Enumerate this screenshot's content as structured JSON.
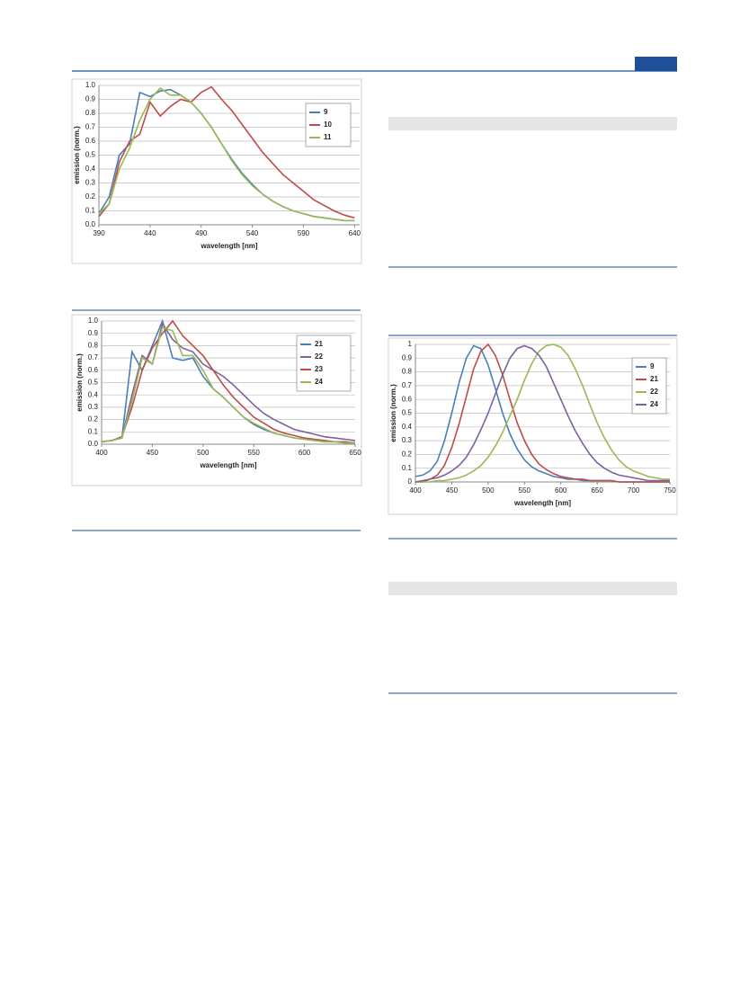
{
  "chart_data": [
    {
      "type": "line",
      "ylabel": "emission (norm.)",
      "xlabel": "wavelength [nm]",
      "x": [
        390,
        400,
        410,
        420,
        430,
        440,
        450,
        460,
        470,
        480,
        490,
        500,
        510,
        520,
        530,
        540,
        550,
        560,
        570,
        580,
        590,
        600,
        610,
        620,
        630,
        640
      ],
      "series": [
        {
          "name": "9",
          "color": "#4a7ebb",
          "values": [
            0.08,
            0.2,
            0.5,
            0.58,
            0.95,
            0.92,
            0.96,
            0.97,
            0.93,
            0.88,
            0.8,
            0.7,
            0.58,
            0.47,
            0.37,
            0.29,
            0.22,
            0.17,
            0.13,
            0.1,
            0.08,
            0.06,
            0.05,
            0.04,
            0.03,
            0.03
          ]
        },
        {
          "name": "10",
          "color": "#be4b48",
          "values": [
            0.06,
            0.15,
            0.45,
            0.6,
            0.65,
            0.88,
            0.78,
            0.85,
            0.9,
            0.88,
            0.95,
            0.99,
            0.9,
            0.82,
            0.72,
            0.62,
            0.52,
            0.44,
            0.36,
            0.3,
            0.24,
            0.18,
            0.14,
            0.1,
            0.07,
            0.05
          ]
        },
        {
          "name": "11",
          "color": "#98b954",
          "values": [
            0.08,
            0.15,
            0.4,
            0.55,
            0.75,
            0.9,
            0.98,
            0.93,
            0.93,
            0.88,
            0.8,
            0.7,
            0.58,
            0.46,
            0.36,
            0.28,
            0.22,
            0.17,
            0.13,
            0.1,
            0.08,
            0.06,
            0.05,
            0.04,
            0.03,
            0.03
          ]
        }
      ],
      "xlim": [
        390,
        645
      ],
      "xticks": [
        390,
        440,
        490,
        540,
        590,
        640
      ],
      "ylim": [
        0,
        1
      ],
      "yticks": [
        {
          "value": 0,
          "label": "0.0"
        },
        0.1,
        0.2,
        0.3,
        0.4,
        0.5,
        0.6,
        0.7,
        0.8,
        0.9,
        {
          "value": 1,
          "label": "1.0"
        }
      ],
      "grid": true
    },
    {
      "type": "line",
      "ylabel": "emission (norm.)",
      "xlabel": "wavelength [nm]",
      "x": [
        400,
        410,
        420,
        430,
        440,
        450,
        460,
        470,
        480,
        490,
        500,
        510,
        520,
        530,
        540,
        550,
        560,
        570,
        580,
        590,
        600,
        610,
        620,
        630,
        640,
        650
      ],
      "series": [
        {
          "name": "21",
          "color": "#4a7ebb",
          "values": [
            0.02,
            0.03,
            0.05,
            0.75,
            0.6,
            0.8,
            1.0,
            0.7,
            0.68,
            0.7,
            0.55,
            0.45,
            0.38,
            0.3,
            0.22,
            0.16,
            0.12,
            0.09,
            0.07,
            0.05,
            0.04,
            0.03,
            0.02,
            0.02,
            0.01,
            0.01
          ]
        },
        {
          "name": "22",
          "color": "#7d60a0",
          "values": [
            0.02,
            0.03,
            0.05,
            0.4,
            0.72,
            0.65,
            0.98,
            0.85,
            0.78,
            0.75,
            0.65,
            0.6,
            0.55,
            0.48,
            0.4,
            0.32,
            0.25,
            0.2,
            0.16,
            0.12,
            0.1,
            0.08,
            0.06,
            0.05,
            0.04,
            0.03
          ]
        },
        {
          "name": "23",
          "color": "#be4b48",
          "values": [
            0.02,
            0.03,
            0.06,
            0.3,
            0.6,
            0.78,
            0.9,
            1.0,
            0.88,
            0.8,
            0.72,
            0.6,
            0.48,
            0.38,
            0.3,
            0.22,
            0.17,
            0.12,
            0.09,
            0.07,
            0.05,
            0.04,
            0.03,
            0.02,
            0.02,
            0.01
          ]
        },
        {
          "name": "24",
          "color": "#98b954",
          "values": [
            0.02,
            0.03,
            0.05,
            0.35,
            0.7,
            0.65,
            0.95,
            0.92,
            0.72,
            0.72,
            0.6,
            0.45,
            0.38,
            0.3,
            0.22,
            0.17,
            0.13,
            0.09,
            0.07,
            0.05,
            0.04,
            0.03,
            0.02,
            0.02,
            0.01,
            0.01
          ]
        }
      ],
      "xlim": [
        400,
        650
      ],
      "xticks": [
        400,
        450,
        500,
        550,
        600,
        650
      ],
      "ylim": [
        0,
        1
      ],
      "yticks": [
        {
          "value": 0,
          "label": "0.0"
        },
        0.1,
        0.2,
        0.3,
        0.4,
        0.5,
        0.6,
        0.7,
        0.8,
        0.9,
        {
          "value": 1,
          "label": "1.0"
        }
      ],
      "grid": true
    },
    {
      "type": "line",
      "ylabel": "emission (norm.)",
      "xlabel": "wavelength [nm]",
      "x": [
        400,
        410,
        420,
        430,
        440,
        450,
        460,
        470,
        480,
        490,
        500,
        510,
        520,
        530,
        540,
        550,
        560,
        570,
        580,
        590,
        600,
        610,
        620,
        630,
        640,
        650,
        660,
        670,
        680,
        690,
        700,
        710,
        720,
        730,
        740,
        750
      ],
      "series": [
        {
          "name": "9",
          "color": "#4a7ebb",
          "values": [
            0.04,
            0.05,
            0.08,
            0.15,
            0.3,
            0.5,
            0.72,
            0.9,
            0.99,
            0.97,
            0.85,
            0.68,
            0.5,
            0.35,
            0.24,
            0.16,
            0.11,
            0.08,
            0.06,
            0.04,
            0.03,
            0.02,
            0.02,
            0.01,
            0.01,
            0.01,
            0.01,
            0.01,
            0,
            0,
            0,
            0,
            0,
            0,
            0,
            0
          ]
        },
        {
          "name": "21",
          "color": "#be4b48",
          "values": [
            0,
            0,
            0.02,
            0.05,
            0.12,
            0.25,
            0.42,
            0.62,
            0.82,
            0.95,
            1.0,
            0.92,
            0.78,
            0.6,
            0.43,
            0.3,
            0.2,
            0.13,
            0.09,
            0.06,
            0.04,
            0.03,
            0.02,
            0.02,
            0.01,
            0.01,
            0.01,
            0.01,
            0,
            0,
            0,
            0,
            0,
            0,
            0,
            0
          ]
        },
        {
          "name": "22",
          "color": "#98b954",
          "values": [
            0,
            0,
            0,
            0.01,
            0.01,
            0.02,
            0.03,
            0.05,
            0.08,
            0.12,
            0.18,
            0.26,
            0.36,
            0.48,
            0.6,
            0.74,
            0.86,
            0.95,
            0.99,
            1.0,
            0.98,
            0.92,
            0.82,
            0.7,
            0.56,
            0.43,
            0.32,
            0.23,
            0.16,
            0.11,
            0.08,
            0.06,
            0.04,
            0.03,
            0.02,
            0.02
          ]
        },
        {
          "name": "24",
          "color": "#7d60a0",
          "values": [
            0,
            0.01,
            0.02,
            0.03,
            0.05,
            0.08,
            0.12,
            0.18,
            0.27,
            0.38,
            0.5,
            0.64,
            0.78,
            0.9,
            0.97,
            0.99,
            0.97,
            0.92,
            0.84,
            0.72,
            0.6,
            0.48,
            0.37,
            0.28,
            0.2,
            0.14,
            0.1,
            0.07,
            0.05,
            0.04,
            0.03,
            0.02,
            0.01,
            0.01,
            0.01,
            0.01
          ]
        }
      ],
      "xlim": [
        400,
        750
      ],
      "xticks": [
        400,
        450,
        500,
        550,
        600,
        650,
        700,
        750
      ],
      "ylim": [
        0,
        1
      ],
      "yticks": [
        0,
        0.1,
        0.2,
        0.3,
        0.4,
        0.5,
        0.6,
        0.7,
        0.8,
        0.9,
        1
      ],
      "grid": true
    }
  ]
}
